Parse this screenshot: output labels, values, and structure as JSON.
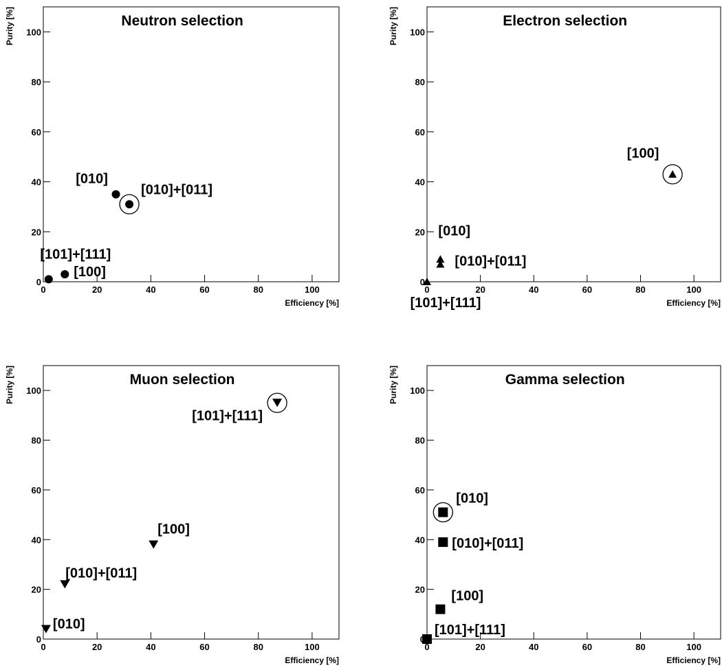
{
  "chart_data": [
    {
      "type": "scatter",
      "title": "Neutron selection",
      "xlabel": "Efficiency [%]",
      "ylabel": "Purity [%]",
      "marker": "circle",
      "color": "#000000",
      "x": [
        27,
        32,
        8,
        2
      ],
      "values": [
        35,
        31,
        3,
        1
      ],
      "labels": [
        "[010]",
        "[010]+[011]",
        "[100]",
        "[101]+[111]"
      ],
      "highlight": 1,
      "xlim": [
        0,
        110
      ],
      "ylim": [
        0,
        110
      ],
      "xticks": [
        0,
        20,
        40,
        60,
        80,
        100
      ],
      "yticks": [
        0,
        20,
        40,
        60,
        80,
        100
      ]
    },
    {
      "type": "scatter",
      "title": "Electron selection",
      "xlabel": "Efficiency [%]",
      "ylabel": "Purity [%]",
      "marker": "triangle-up",
      "color": "#000000",
      "x": [
        92,
        5,
        5,
        0
      ],
      "values": [
        43,
        9,
        7,
        0
      ],
      "labels": [
        "[100]",
        "[010]",
        "[010]+[011]",
        "[101]+[111]"
      ],
      "highlight": 0,
      "xlim": [
        0,
        110
      ],
      "ylim": [
        0,
        110
      ],
      "xticks": [
        0,
        20,
        40,
        60,
        80,
        100
      ],
      "yticks": [
        0,
        20,
        40,
        60,
        80,
        100
      ]
    },
    {
      "type": "scatter",
      "title": "Muon selection",
      "xlabel": "Efficiency [%]",
      "ylabel": "Purity [%]",
      "marker": "triangle-down",
      "color": "#000000",
      "x": [
        87,
        41,
        8,
        1
      ],
      "values": [
        95,
        38,
        22,
        4
      ],
      "labels": [
        "[101]+[111]",
        "[100]",
        "[010]+[011]",
        "[010]"
      ],
      "highlight": 0,
      "xlim": [
        0,
        110
      ],
      "ylim": [
        0,
        110
      ],
      "xticks": [
        0,
        20,
        40,
        60,
        80,
        100
      ],
      "yticks": [
        0,
        20,
        40,
        60,
        80,
        100
      ]
    },
    {
      "type": "scatter",
      "title": "Gamma selection",
      "xlabel": "Efficiency [%]",
      "ylabel": "Purity [%]",
      "marker": "square",
      "color": "#000000",
      "x": [
        6,
        6,
        5,
        0
      ],
      "values": [
        51,
        39,
        12,
        0
      ],
      "labels": [
        "[010]",
        "[010]+[011]",
        "[100]",
        "[101]+[111]"
      ],
      "highlight": 0,
      "xlim": [
        0,
        110
      ],
      "ylim": [
        0,
        110
      ],
      "xticks": [
        0,
        20,
        40,
        60,
        80,
        100
      ],
      "yticks": [
        0,
        20,
        40,
        60,
        80,
        100
      ]
    }
  ]
}
